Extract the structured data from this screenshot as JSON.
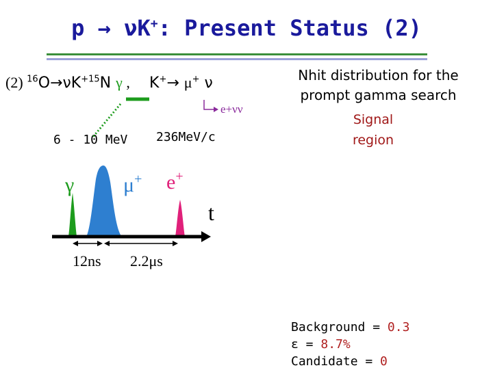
{
  "title": {
    "prefix": "p → ",
    "nu": "ν",
    "k": "K",
    "plus": "+",
    "rest": ": Present Status (2)"
  },
  "reaction": {
    "number": "(2) ",
    "o_mass": "16",
    "o": "O",
    "arrow_nu": "→νK",
    "plus": "+",
    "n_mass": "15",
    "n": "N ",
    "gamma": "γ",
    "comma": " ,"
  },
  "kaon_decay": {
    "k": "K",
    "plus": "+",
    "arrow": "→ ",
    "mu": "μ",
    "mu_plus": "+",
    "nu": " ν"
  },
  "muon_decay": {
    "text": "e+νν"
  },
  "energies": {
    "gamma": "6 - 10 MeV",
    "kaon": "236MeV/c"
  },
  "diagram": {
    "peak_labels": {
      "gamma": "γ",
      "mu": "μ",
      "mu_plus": "+",
      "e": "e",
      "e_plus": "+"
    },
    "time_label": "t",
    "interval_1": "12ns",
    "interval_2": "2.2μs"
  },
  "right_panel": {
    "heading": "Nhit distribution for the prompt gamma search",
    "signal_line1": "Signal",
    "signal_line2": "region"
  },
  "stats": {
    "background_label": "Background = ",
    "background_value": "0.3",
    "eff_label": " ε = ",
    "eff_value": "8.7%",
    "candidate_label": "Candidate = ",
    "candidate_value": "0"
  },
  "colors": {
    "title": "#1a1a9c",
    "gamma": "#1d9c1d",
    "muon": "#2e7fd0",
    "positron": "#e0207a",
    "rule_green": "#3b8f3b",
    "rule_blue": "#9aa0d8",
    "highlight": "#b02020"
  }
}
